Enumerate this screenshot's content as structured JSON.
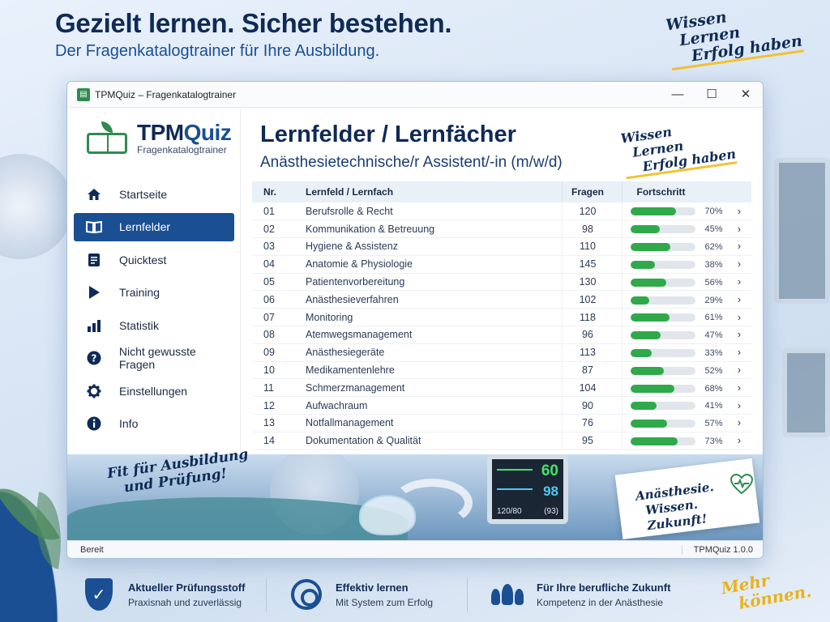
{
  "headline": {
    "title": "Gezielt lernen. Sicher bestehen.",
    "subtitle": "Der Fragenkatalogtrainer für Ihre Ausbildung."
  },
  "tagline": [
    "Wissen",
    "Lernen",
    "Erfolg haben"
  ],
  "window": {
    "title": "TPMQuiz – Fragenkatalogtrainer",
    "controls": [
      "minimize-icon",
      "maximize-icon",
      "close-icon"
    ]
  },
  "logo": {
    "name_a": "TPM",
    "name_b": "Quiz",
    "subtitle": "Fragenkatalogtrainer"
  },
  "nav": [
    {
      "label": "Startseite",
      "icon": "home-icon",
      "active": false
    },
    {
      "label": "Lernfelder",
      "icon": "book-icon",
      "active": true
    },
    {
      "label": "Quicktest",
      "icon": "document-icon",
      "active": false
    },
    {
      "label": "Training",
      "icon": "play-icon",
      "active": false
    },
    {
      "label": "Statistik",
      "icon": "bar-chart-icon",
      "active": false
    },
    {
      "label": "Nicht gewusste Fragen",
      "icon": "question-icon",
      "active": false
    },
    {
      "label": "Einstellungen",
      "icon": "gear-icon",
      "active": false
    },
    {
      "label": "Info",
      "icon": "info-icon",
      "active": false
    }
  ],
  "content": {
    "title": "Lernfelder / Lernfächer",
    "subtitle": "Anästhesietechnische/r Assistent/-in (m/w/d)"
  },
  "table": {
    "headers": {
      "nr": "Nr.",
      "name": "Lernfeld / Lernfach",
      "fragen": "Fragen",
      "fortschritt": "Fortschritt"
    },
    "rows": [
      {
        "nr": "01",
        "name": "Berufsrolle & Recht",
        "fragen": "120",
        "progress": 70,
        "pct": "70%"
      },
      {
        "nr": "02",
        "name": "Kommunikation & Betreuung",
        "fragen": "98",
        "progress": 45,
        "pct": "45%"
      },
      {
        "nr": "03",
        "name": "Hygiene & Assistenz",
        "fragen": "110",
        "progress": 62,
        "pct": "62%"
      },
      {
        "nr": "04",
        "name": "Anatomie & Physiologie",
        "fragen": "145",
        "progress": 38,
        "pct": "38%"
      },
      {
        "nr": "05",
        "name": "Patientenvorbereitung",
        "fragen": "130",
        "progress": 56,
        "pct": "56%"
      },
      {
        "nr": "06",
        "name": "Anästhesieverfahren",
        "fragen": "102",
        "progress": 29,
        "pct": "29%"
      },
      {
        "nr": "07",
        "name": "Monitoring",
        "fragen": "118",
        "progress": 61,
        "pct": "61%"
      },
      {
        "nr": "08",
        "name": "Atemwegsmanagement",
        "fragen": "96",
        "progress": 47,
        "pct": "47%"
      },
      {
        "nr": "09",
        "name": "Anästhesiegeräte",
        "fragen": "113",
        "progress": 33,
        "pct": "33%"
      },
      {
        "nr": "10",
        "name": "Medikamentenlehre",
        "fragen": "87",
        "progress": 52,
        "pct": "52%"
      },
      {
        "nr": "11",
        "name": "Schmerzmanagement",
        "fragen": "104",
        "progress": 68,
        "pct": "68%"
      },
      {
        "nr": "12",
        "name": "Aufwachraum",
        "fragen": "90",
        "progress": 41,
        "pct": "41%"
      },
      {
        "nr": "13",
        "name": "Notfallmanagement",
        "fragen": "76",
        "progress": 57,
        "pct": "57%"
      },
      {
        "nr": "14",
        "name": "Dokumentation & Qualität",
        "fragen": "95",
        "progress": 73,
        "pct": "73%"
      }
    ]
  },
  "banner": {
    "fit": [
      "Fit für Ausbildung",
      "und Prüfung!"
    ],
    "note": [
      "Anästhesie.",
      "Wissen. Zukunft!"
    ],
    "monitor": {
      "v1": "60",
      "v2": "98",
      "bp": "120/80",
      "v4": "(93)"
    }
  },
  "status": {
    "left": "Bereit",
    "version": "TPMQuiz 1.0.0"
  },
  "features": [
    {
      "title": "Aktueller Prüfungsstoff",
      "sub": "Praxisnah und zuverlässig",
      "icon": "shield-check-icon"
    },
    {
      "title": "Effektiv lernen",
      "sub": "Mit System zum Erfolg",
      "icon": "target-icon"
    },
    {
      "title": "Für Ihre berufliche Zukunft",
      "sub": "Kompetenz in der Anästhesie",
      "icon": "people-icon"
    }
  ],
  "mehr": [
    "Mehr",
    "können."
  ],
  "colors": {
    "primary": "#1a4f93",
    "dark": "#0f2a55",
    "green": "#2fa94a",
    "accent": "#f2c230"
  }
}
